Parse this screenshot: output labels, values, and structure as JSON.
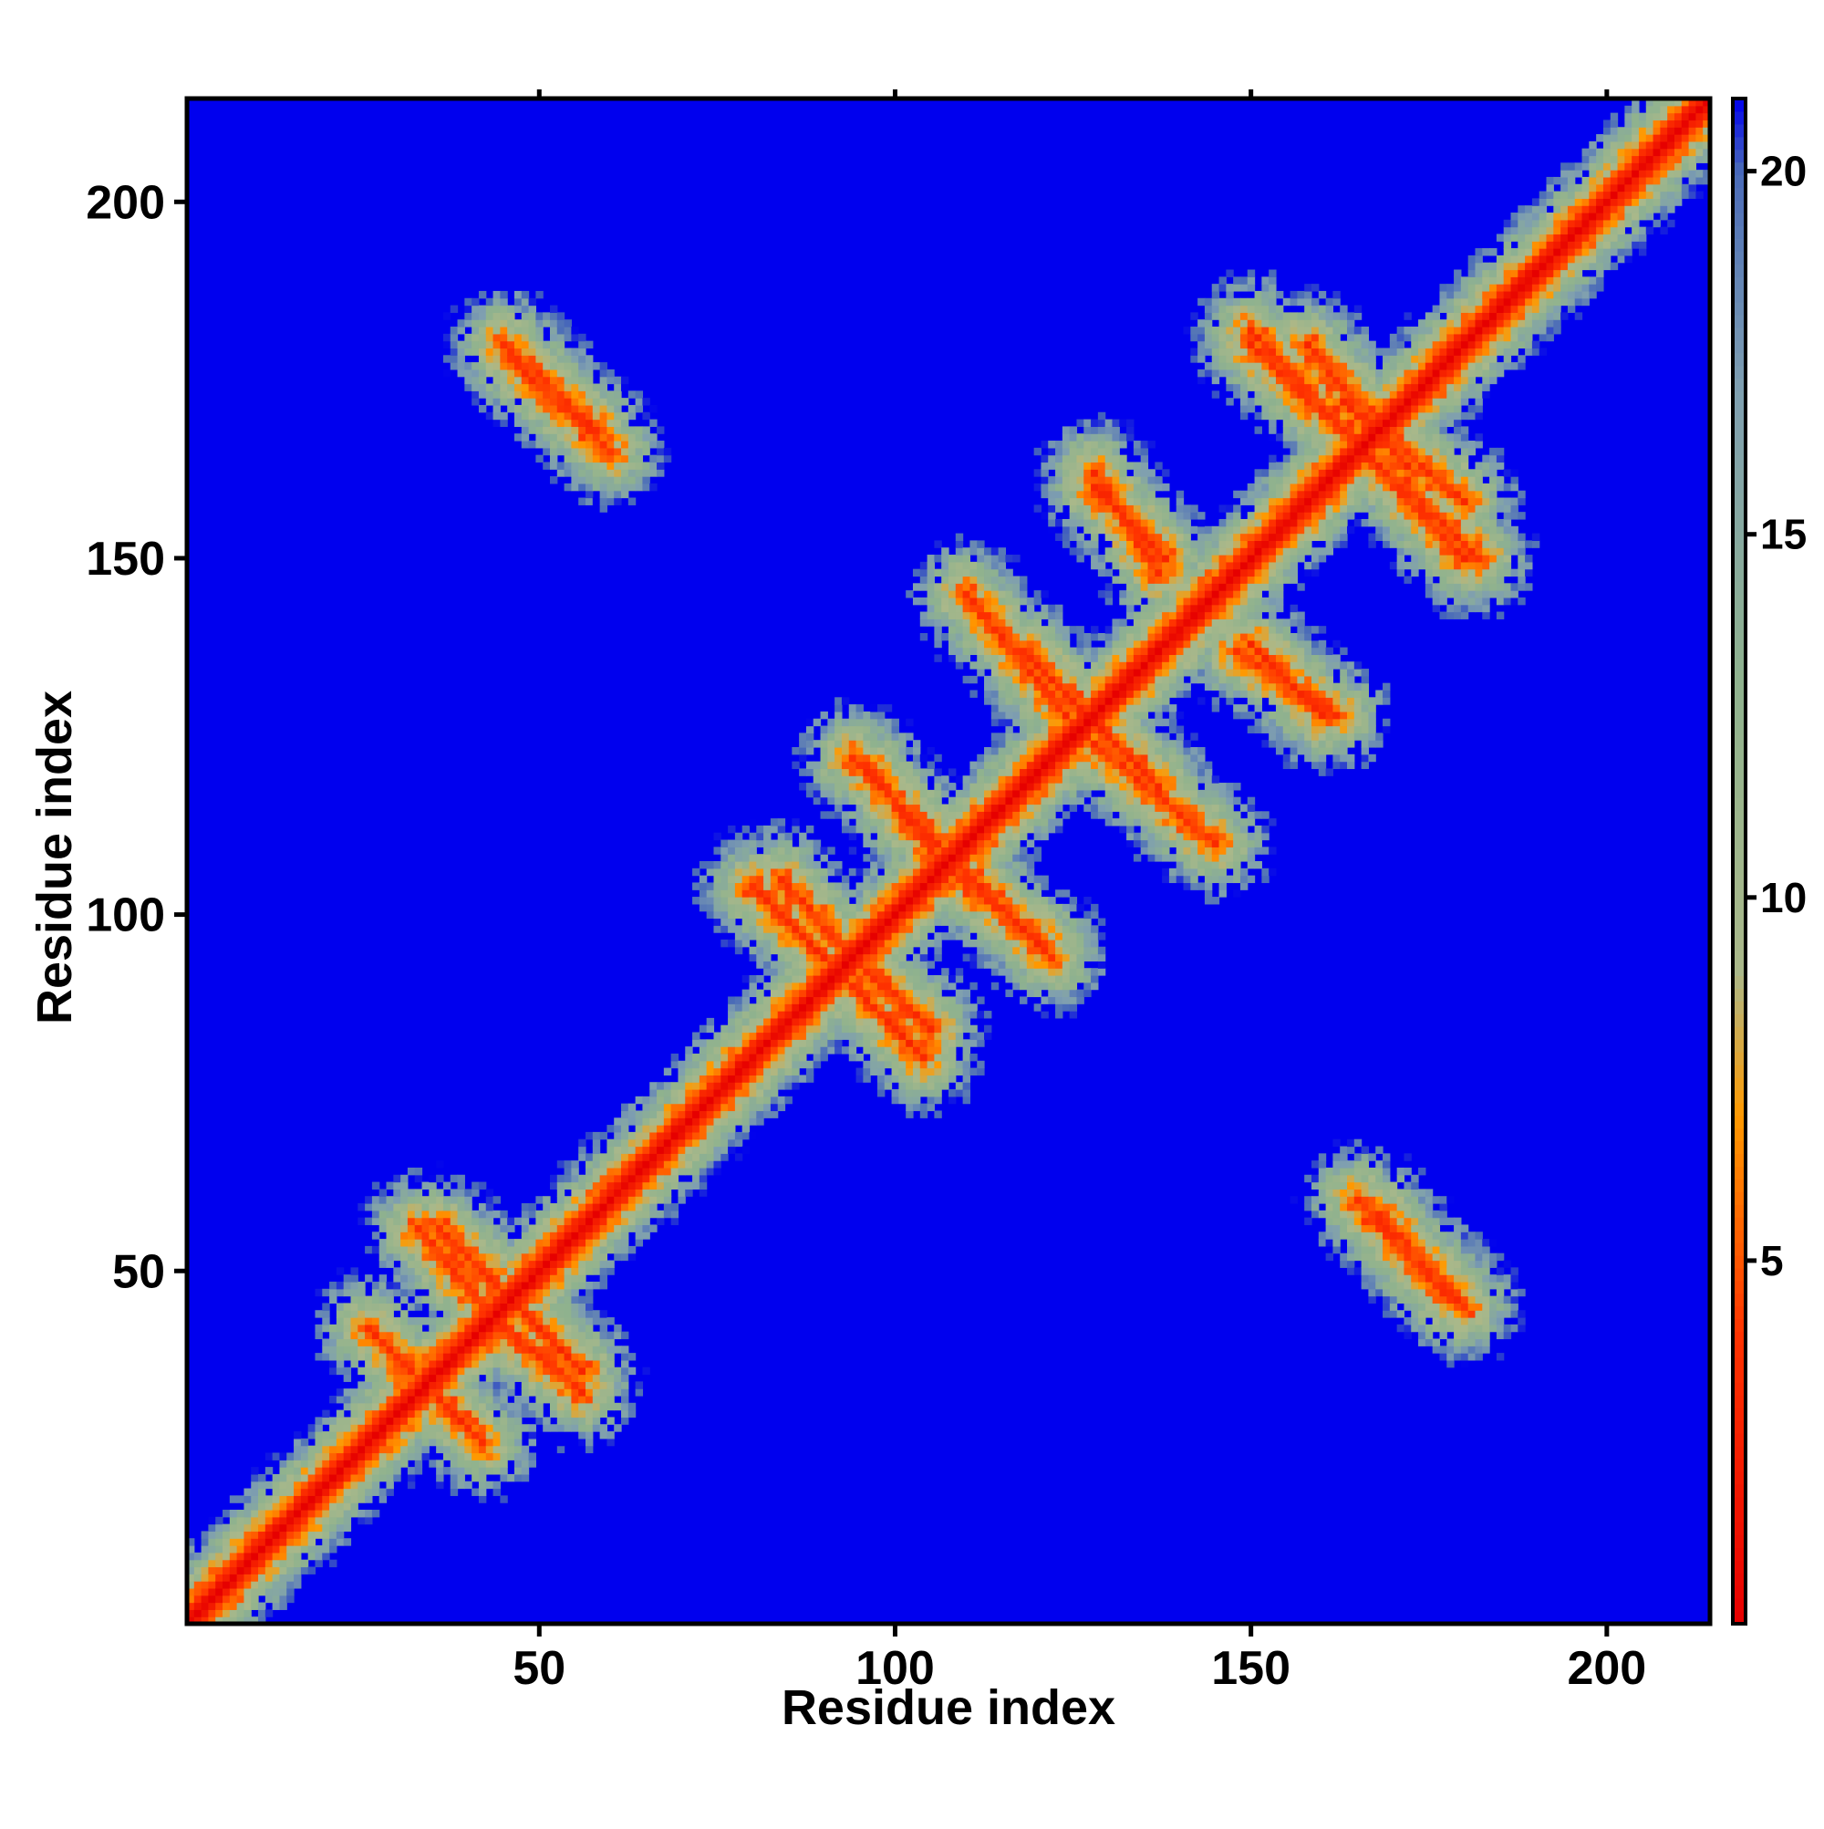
{
  "chart_data": {
    "type": "heatmap",
    "title": "",
    "xlabel": "Residue index",
    "ylabel": "Residue index",
    "xlim": [
      1,
      214
    ],
    "ylim": [
      1,
      214
    ],
    "x_ticks": [
      50,
      100,
      150,
      200
    ],
    "y_ticks": [
      50,
      100,
      150,
      200
    ],
    "colorbar": {
      "ticks": [
        5,
        10,
        15,
        20
      ],
      "range": [
        0,
        21
      ],
      "stops": [
        {
          "value": 0,
          "color": "#e60000"
        },
        {
          "value": 4,
          "color": "#ff3300"
        },
        {
          "value": 7,
          "color": "#ff9900"
        },
        {
          "value": 9,
          "color": "#aab88a"
        },
        {
          "value": 13,
          "color": "#8fb28e"
        },
        {
          "value": 17,
          "color": "#7f9fb0"
        },
        {
          "value": 20,
          "color": "#4a6bb8"
        },
        {
          "value": 21,
          "color": "#0000ee"
        }
      ],
      "background_color": "#0000ee"
    },
    "matrix_description": {
      "quantity": "inter-residue distance",
      "diagonal_width": 6,
      "contact_bands": [
        {
          "start": [
            36,
            56
          ],
          "end": [
            56,
            36
          ],
          "kind": "antiparallel"
        },
        {
          "start": [
            26,
            42
          ],
          "end": [
            40,
            28
          ],
          "kind": "antiparallel"
        },
        {
          "start": [
            44,
            43
          ],
          "end": [
            56,
            33
          ],
          "kind": "antiparallel"
        },
        {
          "start": [
            80,
            104
          ],
          "end": [
            104,
            80
          ],
          "kind": "antiparallel"
        },
        {
          "start": [
            95,
            93
          ],
          "end": [
            105,
            84
          ],
          "kind": "antiparallel"
        },
        {
          "start": [
            94,
            122
          ],
          "end": [
            122,
            94
          ],
          "kind": "antiparallel"
        },
        {
          "start": [
            108,
            106
          ],
          "end": [
            121,
            96
          ],
          "kind": "antiparallel"
        },
        {
          "start": [
            118,
            137
          ],
          "end": [
            137,
            118
          ],
          "kind": "antiparallel"
        },
        {
          "start": [
            128,
            124
          ],
          "end": [
            145,
            110
          ],
          "kind": "antiparallel"
        },
        {
          "start": [
            128,
            160
          ],
          "end": [
            138,
            150
          ],
          "kind": "antiparallel"
        },
        {
          "start": [
            148,
            137
          ],
          "end": [
            162,
            128
          ],
          "kind": "antiparallel"
        },
        {
          "start": [
            150,
            182
          ],
          "end": [
            180,
            150
          ],
          "kind": "antiparallel"
        },
        {
          "start": [
            163,
            172
          ],
          "end": [
            180,
            158
          ],
          "kind": "antiparallel"
        },
        {
          "start": [
            45,
            180
          ],
          "end": [
            58,
            168
          ],
          "kind": "antiparallel"
        },
        {
          "start": [
            165,
            60
          ],
          "end": [
            178,
            46
          ],
          "kind": "antiparallel"
        }
      ]
    }
  }
}
